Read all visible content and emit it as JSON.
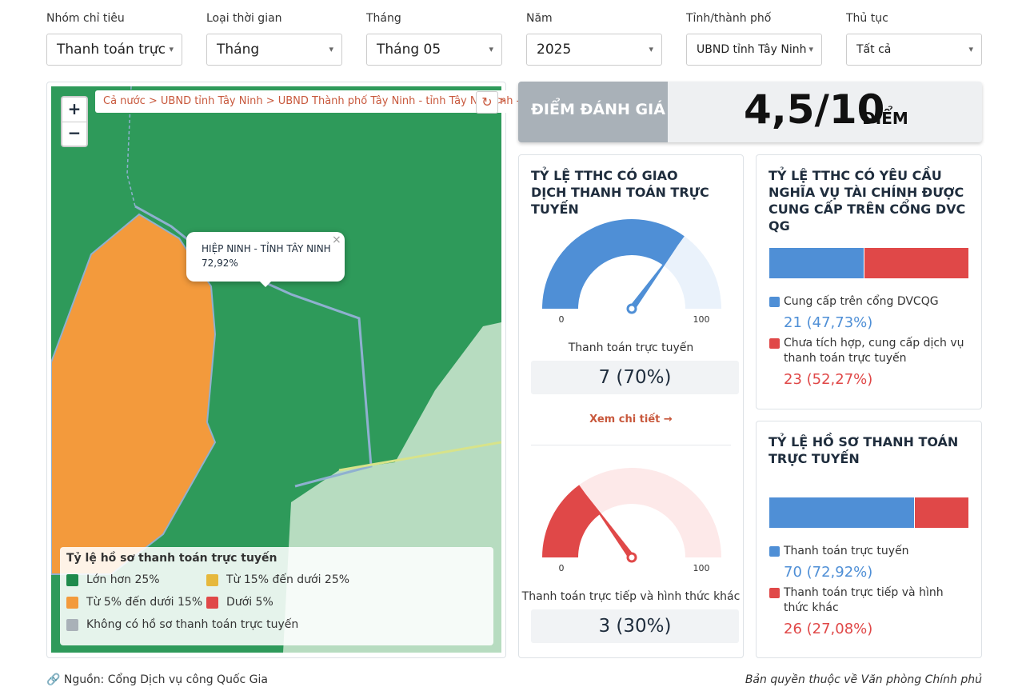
{
  "filters": [
    {
      "label": "Nhóm chỉ tiêu",
      "value": "Thanh toán trực"
    },
    {
      "label": "Loại thời gian",
      "value": "Tháng"
    },
    {
      "label": "Tháng",
      "value": "Tháng 05"
    },
    {
      "label": "Năm",
      "value": "2025"
    },
    {
      "label": "Tỉnh/thành phố",
      "value": "UBND tỉnh Tây Ninh"
    },
    {
      "label": "Thủ tục",
      "value": "Tất cả"
    }
  ],
  "map": {
    "breadcrumb": "Cả nước > UBND tỉnh Tây Ninh > UBND Thành phố Tây Ninh - tỉnh Tây Ninh >",
    "breadcrumb_tail": "nh - tỉnh Tây Ninh",
    "zoom_in": "+",
    "zoom_out": "−",
    "popup": {
      "title": "HIỆP NINH - TỈNH TÂY NINH",
      "value": "72,92%"
    },
    "legend": {
      "title": "Tỷ lệ hồ sơ thanh toán trực tuyến",
      "items": [
        {
          "name": "Lớn hơn 25%",
          "color": "#1e8a4c"
        },
        {
          "name": "Từ 15% đến dưới 25%",
          "color": "#e6b83c"
        },
        {
          "name": "Từ 5% đến dưới 15%",
          "color": "#f39a3c"
        },
        {
          "name": "Dưới 5%",
          "color": "#e04848"
        },
        {
          "name": "Không có hồ sơ thanh toán trực tuyến",
          "color": "#a9b1b8"
        }
      ]
    }
  },
  "score": {
    "label": "ĐIỂM ĐÁNH GIÁ",
    "value": "4,5/10",
    "unit": "ĐIỂM"
  },
  "gauge_card": {
    "title": "TỶ LỆ TTHC CÓ GIAO DỊCH THANH TOÁN TRỰC TUYẾN",
    "link": "Xem chi tiết",
    "gauges": [
      {
        "caption": "Thanh toán trực tuyến",
        "value": 70,
        "value_label": "7 (70%)",
        "min": 0,
        "max": 100,
        "color": "#4f8fd6",
        "track": "#eaf2fb"
      },
      {
        "caption": "Thanh toán trực tiếp và hình thức khác",
        "value": 30,
        "value_label": "3 (30%)",
        "min": 0,
        "max": 100,
        "color": "#e04848",
        "track": "#fde9e9"
      }
    ]
  },
  "bar_cards": [
    {
      "title": "TỶ LỆ TTHC CÓ YÊU CẦU NGHĨA VỤ TÀI CHÍNH ĐƯỢC CUNG CẤP TRÊN CỔNG DVC QG",
      "segments": [
        {
          "name": "Cung cấp trên cổng DVCQG",
          "value": 47.73,
          "value_label": "21 (47,73%)",
          "color": "#4f8fd6"
        },
        {
          "name": "Chưa tích hợp, cung cấp dịch vụ thanh toán trực tuyến",
          "value": 52.27,
          "value_label": "23 (52,27%)",
          "color": "#e04848"
        }
      ]
    },
    {
      "title": "TỶ LỆ HỒ SƠ THANH TOÁN TRỰC TUYẾN",
      "segments": [
        {
          "name": "Thanh toán trực tuyến",
          "value": 72.92,
          "value_label": "70 (72,92%)",
          "color": "#4f8fd6"
        },
        {
          "name": "Thanh toán trực tiếp và hình thức khác",
          "value": 27.08,
          "value_label": "26 (27,08%)",
          "color": "#e04848"
        }
      ]
    }
  ],
  "footer": {
    "source": "Nguồn: Cổng Dịch vụ công Quốc Gia",
    "copyright": "Bản quyền thuộc về Văn phòng Chính phủ"
  }
}
